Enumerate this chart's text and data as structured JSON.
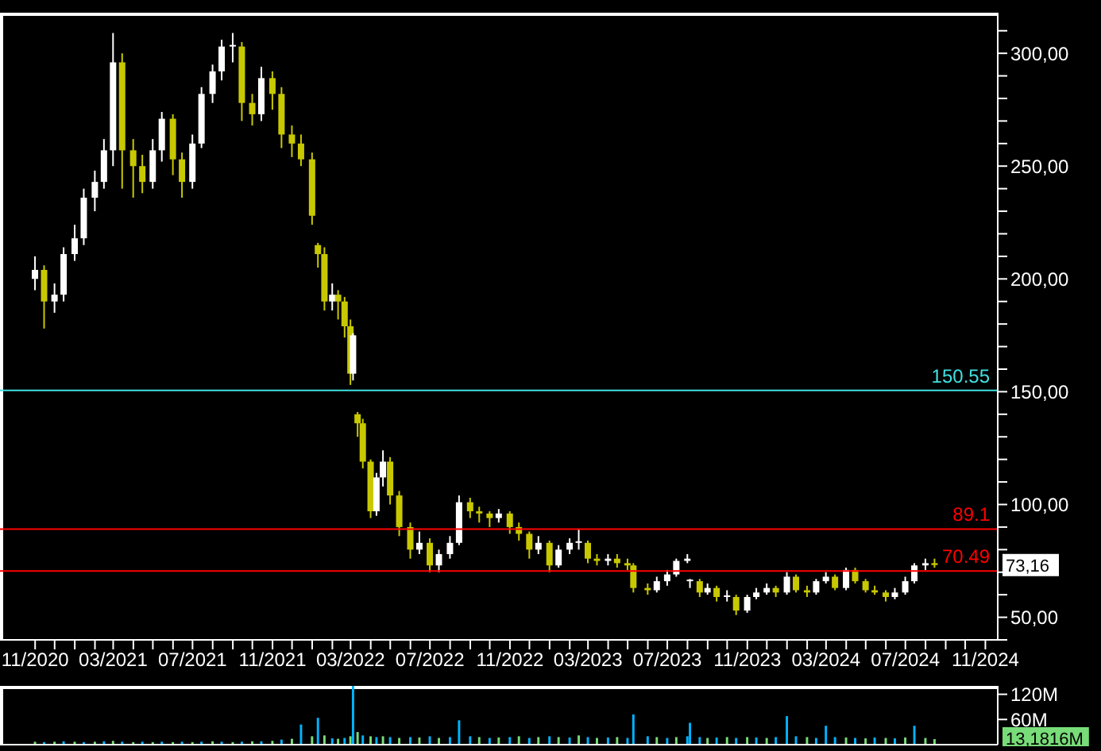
{
  "chart_data": [
    {
      "type": "candlestick",
      "x": [
        "2020-11-01",
        "2020-11-15",
        "2020-12-01",
        "2020-12-15",
        "2021-01-01",
        "2021-01-15",
        "2021-02-01",
        "2021-02-15",
        "2021-03-01",
        "2021-03-15",
        "2021-04-01",
        "2021-04-15",
        "2021-05-01",
        "2021-05-15",
        "2021-06-01",
        "2021-06-15",
        "2021-07-01",
        "2021-07-15",
        "2021-08-01",
        "2021-08-15",
        "2021-09-01",
        "2021-09-15",
        "2021-10-01",
        "2021-10-15",
        "2021-11-01",
        "2021-11-15",
        "2021-12-01",
        "2021-12-15",
        "2022-01-01",
        "2022-01-10",
        "2022-01-20",
        "2022-02-01",
        "2022-02-10",
        "2022-02-20",
        "2022-03-01",
        "2022-03-05",
        "2022-03-12",
        "2022-03-20",
        "2022-04-01",
        "2022-04-10",
        "2022-04-20",
        "2022-05-01",
        "2022-05-15",
        "2022-06-01",
        "2022-06-15",
        "2022-07-01",
        "2022-07-15",
        "2022-08-01",
        "2022-08-15",
        "2022-09-01",
        "2022-09-15",
        "2022-10-01",
        "2022-10-15",
        "2022-11-01",
        "2022-11-15",
        "2022-12-01",
        "2022-12-15",
        "2023-01-01",
        "2023-01-15",
        "2023-02-01",
        "2023-02-15",
        "2023-03-01",
        "2023-03-15",
        "2023-04-01",
        "2023-04-15",
        "2023-05-01",
        "2023-05-10",
        "2023-06-01",
        "2023-06-15",
        "2023-07-01",
        "2023-07-15",
        "2023-08-01",
        "2023-08-05",
        "2023-08-20",
        "2023-09-01",
        "2023-09-15",
        "2023-10-01",
        "2023-10-15",
        "2023-11-01",
        "2023-11-15",
        "2023-12-01",
        "2023-12-15",
        "2024-01-01",
        "2024-01-15",
        "2024-02-01",
        "2024-02-15",
        "2024-03-01",
        "2024-03-15",
        "2024-04-01",
        "2024-04-15",
        "2024-05-01",
        "2024-05-15",
        "2024-06-01",
        "2024-06-15",
        "2024-07-01",
        "2024-07-15",
        "2024-08-01",
        "2024-08-15"
      ],
      "ohlc": [
        [
          200,
          210,
          195,
          204
        ],
        [
          204,
          206,
          178,
          190
        ],
        [
          190,
          198,
          185,
          193
        ],
        [
          193,
          214,
          190,
          211
        ],
        [
          211,
          224,
          208,
          218
        ],
        [
          218,
          240,
          215,
          236
        ],
        [
          236,
          248,
          230,
          243
        ],
        [
          243,
          262,
          240,
          257
        ],
        [
          257,
          309,
          250,
          296
        ],
        [
          296,
          300,
          240,
          257
        ],
        [
          257,
          262,
          236,
          250
        ],
        [
          250,
          255,
          238,
          243
        ],
        [
          243,
          262,
          240,
          257
        ],
        [
          257,
          274,
          252,
          271
        ],
        [
          271,
          273,
          246,
          253
        ],
        [
          253,
          256,
          236,
          243
        ],
        [
          243,
          264,
          240,
          260
        ],
        [
          260,
          285,
          258,
          282
        ],
        [
          282,
          295,
          278,
          292
        ],
        [
          292,
          306,
          288,
          303
        ],
        [
          303,
          309,
          296,
          303
        ],
        [
          303,
          305,
          270,
          278
        ],
        [
          278,
          282,
          268,
          273
        ],
        [
          273,
          294,
          270,
          289
        ],
        [
          289,
          292,
          275,
          282
        ],
        [
          282,
          285,
          258,
          264
        ],
        [
          264,
          268,
          254,
          260
        ],
        [
          260,
          264,
          250,
          253
        ],
        [
          253,
          256,
          224,
          228
        ],
        [
          215,
          216,
          205,
          211
        ],
        [
          211,
          214,
          186,
          190
        ],
        [
          190,
          198,
          186,
          193
        ],
        [
          193,
          195,
          182,
          190
        ],
        [
          190,
          192,
          174,
          179
        ],
        [
          179,
          182,
          153,
          158
        ],
        [
          158,
          176,
          155,
          175
        ],
        [
          140,
          141,
          130,
          136
        ],
        [
          136,
          138,
          116,
          119
        ],
        [
          119,
          120,
          94,
          97
        ],
        [
          97,
          114,
          95,
          112
        ],
        [
          112,
          124,
          108,
          119
        ],
        [
          119,
          121,
          100,
          104
        ],
        [
          104,
          106,
          86,
          90
        ],
        [
          90,
          92,
          76,
          80
        ],
        [
          80,
          88,
          78,
          83
        ],
        [
          83,
          85,
          70,
          73
        ],
        [
          73,
          80,
          70,
          78
        ],
        [
          78,
          86,
          76,
          83
        ],
        [
          83,
          104,
          82,
          101
        ],
        [
          101,
          103,
          94,
          97
        ],
        [
          97,
          99,
          92,
          96
        ],
        [
          96,
          97,
          90,
          94
        ],
        [
          94,
          98,
          92,
          96
        ],
        [
          96,
          97,
          87,
          90
        ],
        [
          90,
          92,
          84,
          87
        ],
        [
          87,
          88,
          76,
          80
        ],
        [
          80,
          86,
          78,
          83
        ],
        [
          83,
          84,
          70,
          73
        ],
        [
          73,
          82,
          72,
          80
        ],
        [
          80,
          85,
          78,
          83
        ],
        [
          83,
          89,
          80,
          83
        ],
        [
          83,
          84,
          74,
          76
        ],
        [
          76,
          78,
          73,
          75
        ],
        [
          75,
          78,
          73,
          76
        ],
        [
          76,
          78,
          72,
          74
        ],
        [
          74,
          76,
          71,
          73
        ],
        [
          73,
          74,
          61,
          63
        ],
        [
          63,
          65,
          60,
          62
        ],
        [
          62,
          68,
          61,
          66
        ],
        [
          66,
          71,
          64,
          69
        ],
        [
          69,
          76,
          68,
          75
        ],
        [
          75,
          78,
          74,
          76
        ],
        [
          66,
          67,
          63,
          66
        ],
        [
          66,
          67,
          59,
          61
        ],
        [
          61,
          65,
          60,
          63
        ],
        [
          63,
          64,
          57,
          59
        ],
        [
          59,
          62,
          57,
          59
        ],
        [
          59,
          60,
          51,
          53
        ],
        [
          53,
          60,
          52,
          59
        ],
        [
          59,
          63,
          58,
          61
        ],
        [
          61,
          65,
          60,
          63
        ],
        [
          63,
          64,
          59,
          61
        ],
        [
          61,
          70,
          60,
          68
        ],
        [
          68,
          69,
          61,
          62
        ],
        [
          62,
          64,
          59,
          61
        ],
        [
          61,
          67,
          60,
          66
        ],
        [
          66,
          70,
          65,
          68
        ],
        [
          68,
          69,
          62,
          63
        ],
        [
          63,
          72,
          62,
          71
        ],
        [
          71,
          72,
          65,
          66
        ],
        [
          66,
          67,
          61,
          62
        ],
        [
          62,
          64,
          60,
          61
        ],
        [
          61,
          62,
          57,
          59
        ],
        [
          59,
          63,
          58,
          61
        ],
        [
          61,
          68,
          60,
          66
        ],
        [
          66,
          74,
          65,
          73
        ],
        [
          73,
          76,
          71,
          74
        ],
        [
          74,
          76,
          72,
          73.16
        ]
      ],
      "colors": [
        "#ffffff",
        "#c8c800",
        "#ffffff",
        "#ffffff",
        "#ffffff",
        "#ffffff",
        "#ffffff",
        "#ffffff",
        "#ffffff",
        "#c8c800",
        "#c8c800",
        "#c8c800",
        "#ffffff",
        "#ffffff",
        "#c8c800",
        "#c8c800",
        "#ffffff",
        "#ffffff",
        "#ffffff",
        "#ffffff",
        "#ffffff",
        "#c8c800",
        "#c8c800",
        "#ffffff",
        "#c8c800",
        "#c8c800",
        "#c8c800",
        "#c8c800",
        "#c8c800",
        "#c8c800",
        "#c8c800",
        "#ffffff",
        "#c8c800",
        "#c8c800",
        "#c8c800",
        "#ffffff",
        "#c8c800",
        "#c8c800",
        "#c8c800",
        "#ffffff",
        "#ffffff",
        "#c8c800",
        "#c8c800",
        "#c8c800",
        "#ffffff",
        "#c8c800",
        "#ffffff",
        "#ffffff",
        "#ffffff",
        "#c8c800",
        "#c8c800",
        "#c8c800",
        "#ffffff",
        "#c8c800",
        "#c8c800",
        "#c8c800",
        "#ffffff",
        "#c8c800",
        "#ffffff",
        "#ffffff",
        "#ffffff",
        "#c8c800",
        "#c8c800",
        "#ffffff",
        "#c8c800",
        "#c8c800",
        "#c8c800",
        "#c8c800",
        "#ffffff",
        "#ffffff",
        "#ffffff",
        "#ffffff",
        "#ffffff",
        "#c8c800",
        "#ffffff",
        "#c8c800",
        "#ffffff",
        "#c8c800",
        "#ffffff",
        "#ffffff",
        "#ffffff",
        "#c8c800",
        "#ffffff",
        "#c8c800",
        "#c8c800",
        "#ffffff",
        "#ffffff",
        "#c8c800",
        "#ffffff",
        "#c8c800",
        "#c8c800",
        "#c8c800",
        "#c8c800",
        "#ffffff",
        "#ffffff",
        "#ffffff",
        "#ffffff",
        "#c8c800"
      ],
      "xlim": [
        "2020-09-08",
        "2024-11-20"
      ],
      "xticks": [
        {
          "value": "2020-11",
          "label": "11/2020"
        },
        {
          "value": "2020-12",
          "label": null
        },
        {
          "value": "2021-01",
          "label": null
        },
        {
          "value": "2021-02",
          "label": null
        },
        {
          "value": "2021-03",
          "label": "03/2021"
        },
        {
          "value": "2021-04",
          "label": null
        },
        {
          "value": "2021-05",
          "label": null
        },
        {
          "value": "2021-06",
          "label": null
        },
        {
          "value": "2021-07",
          "label": "07/2021"
        },
        {
          "value": "2021-08",
          "label": null
        },
        {
          "value": "2021-09",
          "label": null
        },
        {
          "value": "2021-10",
          "label": null
        },
        {
          "value": "2021-11",
          "label": "11/2021"
        },
        {
          "value": "2021-12",
          "label": null
        },
        {
          "value": "2022-01",
          "label": null
        },
        {
          "value": "2022-02",
          "label": null
        },
        {
          "value": "2022-03",
          "label": "03/2022"
        },
        {
          "value": "2022-04",
          "label": null
        },
        {
          "value": "2022-05",
          "label": null
        },
        {
          "value": "2022-06",
          "label": null
        },
        {
          "value": "2022-07",
          "label": "07/2022"
        },
        {
          "value": "2022-08",
          "label": null
        },
        {
          "value": "2022-09",
          "label": null
        },
        {
          "value": "2022-10",
          "label": null
        },
        {
          "value": "2022-11",
          "label": "11/2022"
        },
        {
          "value": "2022-12",
          "label": null
        },
        {
          "value": "2023-01",
          "label": null
        },
        {
          "value": "2023-02",
          "label": null
        },
        {
          "value": "2023-03",
          "label": "03/2023"
        },
        {
          "value": "2023-04",
          "label": null
        },
        {
          "value": "2023-05",
          "label": null
        },
        {
          "value": "2023-06",
          "label": null
        },
        {
          "value": "2023-07",
          "label": "07/2023"
        },
        {
          "value": "2023-08",
          "label": null
        },
        {
          "value": "2023-09",
          "label": null
        },
        {
          "value": "2023-10",
          "label": null
        },
        {
          "value": "2023-11",
          "label": "11/2023"
        },
        {
          "value": "2023-12",
          "label": null
        },
        {
          "value": "2024-01",
          "label": null
        },
        {
          "value": "2024-02",
          "label": null
        },
        {
          "value": "2024-03",
          "label": "03/2024"
        },
        {
          "value": "2024-04",
          "label": null
        },
        {
          "value": "2024-05",
          "label": null
        },
        {
          "value": "2024-06",
          "label": null
        },
        {
          "value": "2024-07",
          "label": "07/2024"
        },
        {
          "value": "2024-08",
          "label": null
        },
        {
          "value": "2024-09",
          "label": null
        },
        {
          "value": "2024-10",
          "label": null
        },
        {
          "value": "2024-11",
          "label": "11/2024"
        }
      ],
      "ylim": [
        40,
        318
      ],
      "yticks": [
        {
          "value": 40,
          "label": null
        },
        {
          "value": 50,
          "label": "50,00"
        },
        {
          "value": 60,
          "label": null
        },
        {
          "value": 70,
          "label": null
        },
        {
          "value": 80,
          "label": null
        },
        {
          "value": 90,
          "label": null
        },
        {
          "value": 100,
          "label": "100,00"
        },
        {
          "value": 110,
          "label": null
        },
        {
          "value": 120,
          "label": null
        },
        {
          "value": 130,
          "label": null
        },
        {
          "value": 140,
          "label": null
        },
        {
          "value": 150,
          "label": "150,00"
        },
        {
          "value": 160,
          "label": null
        },
        {
          "value": 170,
          "label": null
        },
        {
          "value": 180,
          "label": null
        },
        {
          "value": 190,
          "label": null
        },
        {
          "value": 200,
          "label": "200,00"
        },
        {
          "value": 210,
          "label": null
        },
        {
          "value": 220,
          "label": null
        },
        {
          "value": 230,
          "label": null
        },
        {
          "value": 240,
          "label": null
        },
        {
          "value": 250,
          "label": "250,00"
        },
        {
          "value": 260,
          "label": null
        },
        {
          "value": 270,
          "label": null
        },
        {
          "value": 280,
          "label": null
        },
        {
          "value": 290,
          "label": null
        },
        {
          "value": 300,
          "label": "300,00"
        },
        {
          "value": 310,
          "label": null
        }
      ],
      "ref_lines": [
        {
          "axis": "y",
          "value": 150.55,
          "label": "150.55",
          "color": "#40e0e0"
        },
        {
          "axis": "y",
          "value": 89.1,
          "label": "89.1",
          "color": "#ff0000"
        },
        {
          "axis": "y",
          "value": 70.49,
          "label": "70.49",
          "color": "#ff0000"
        }
      ],
      "annotations": [
        "73,16"
      ]
    },
    {
      "type": "bar",
      "x": [
        "2020-11-01",
        "2020-11-15",
        "2020-12-01",
        "2020-12-15",
        "2021-01-01",
        "2021-01-15",
        "2021-02-01",
        "2021-02-15",
        "2021-03-01",
        "2021-03-15",
        "2021-04-01",
        "2021-04-15",
        "2021-05-01",
        "2021-05-15",
        "2021-06-01",
        "2021-06-15",
        "2021-07-01",
        "2021-07-15",
        "2021-08-01",
        "2021-08-15",
        "2021-09-01",
        "2021-09-15",
        "2021-10-01",
        "2021-10-15",
        "2021-11-01",
        "2021-11-15",
        "2021-12-01",
        "2021-12-15",
        "2022-01-01",
        "2022-01-10",
        "2022-01-20",
        "2022-02-01",
        "2022-02-10",
        "2022-02-20",
        "2022-03-01",
        "2022-03-05",
        "2022-03-12",
        "2022-03-20",
        "2022-04-01",
        "2022-04-10",
        "2022-04-20",
        "2022-05-01",
        "2022-05-15",
        "2022-06-01",
        "2022-06-15",
        "2022-07-01",
        "2022-07-15",
        "2022-08-01",
        "2022-08-15",
        "2022-09-01",
        "2022-09-15",
        "2022-10-01",
        "2022-10-15",
        "2022-11-01",
        "2022-11-15",
        "2022-12-01",
        "2022-12-15",
        "2023-01-01",
        "2023-01-15",
        "2023-02-01",
        "2023-02-15",
        "2023-03-01",
        "2023-03-15",
        "2023-04-01",
        "2023-04-15",
        "2023-05-01",
        "2023-05-10",
        "2023-06-01",
        "2023-06-15",
        "2023-07-01",
        "2023-07-15",
        "2023-08-01",
        "2023-08-05",
        "2023-08-20",
        "2023-09-01",
        "2023-09-15",
        "2023-10-01",
        "2023-10-15",
        "2023-11-01",
        "2023-11-15",
        "2023-12-01",
        "2023-12-15",
        "2024-01-01",
        "2024-01-15",
        "2024-02-01",
        "2024-02-15",
        "2024-03-01",
        "2024-03-15",
        "2024-04-01",
        "2024-04-15",
        "2024-05-01",
        "2024-05-15",
        "2024-06-01",
        "2024-06-15",
        "2024-07-01",
        "2024-07-15",
        "2024-08-01",
        "2024-08-15"
      ],
      "values": [
        7,
        6,
        7,
        8,
        7,
        6,
        7,
        8,
        9,
        7,
        6,
        7,
        6,
        7,
        6,
        7,
        6,
        7,
        8,
        7,
        6,
        7,
        8,
        8,
        9,
        12,
        14,
        48,
        20,
        64,
        22,
        15,
        14,
        16,
        20,
        140,
        30,
        22,
        20,
        18,
        20,
        18,
        16,
        18,
        17,
        20,
        16,
        18,
        58,
        20,
        18,
        16,
        17,
        18,
        20,
        16,
        18,
        20,
        18,
        17,
        22,
        18,
        16,
        17,
        18,
        16,
        72,
        20,
        18,
        16,
        18,
        20,
        52,
        18,
        16,
        17,
        18,
        16,
        18,
        17,
        16,
        18,
        68,
        20,
        18,
        16,
        45,
        18,
        17,
        16,
        15,
        17,
        16,
        15,
        17,
        45,
        16,
        13.1816
      ],
      "colors": [
        "#78dc78",
        "#00b4ff",
        "#78dc78",
        "#00b4ff",
        "#78dc78",
        "#00b4ff",
        "#78dc78",
        "#00b4ff",
        "#78dc78",
        "#00b4ff",
        "#78dc78",
        "#00b4ff",
        "#78dc78",
        "#00b4ff",
        "#78dc78",
        "#00b4ff",
        "#78dc78",
        "#00b4ff",
        "#78dc78",
        "#00b4ff",
        "#78dc78",
        "#00b4ff",
        "#78dc78",
        "#00b4ff",
        "#78dc78",
        "#00b4ff",
        "#78dc78",
        "#00b4ff",
        "#78dc78",
        "#00b4ff",
        "#78dc78",
        "#00b4ff",
        "#78dc78",
        "#00b4ff",
        "#78dc78",
        "#00b4ff",
        "#78dc78",
        "#00b4ff",
        "#78dc78",
        "#00b4ff",
        "#78dc78",
        "#00b4ff",
        "#78dc78",
        "#00b4ff",
        "#78dc78",
        "#00b4ff",
        "#78dc78",
        "#00b4ff",
        "#00b4ff",
        "#00b4ff",
        "#78dc78",
        "#00b4ff",
        "#78dc78",
        "#00b4ff",
        "#78dc78",
        "#00b4ff",
        "#78dc78",
        "#00b4ff",
        "#78dc78",
        "#00b4ff",
        "#78dc78",
        "#00b4ff",
        "#78dc78",
        "#00b4ff",
        "#78dc78",
        "#00b4ff",
        "#00b4ff",
        "#00b4ff",
        "#78dc78",
        "#00b4ff",
        "#78dc78",
        "#00b4ff",
        "#00b4ff",
        "#00b4ff",
        "#78dc78",
        "#00b4ff",
        "#78dc78",
        "#00b4ff",
        "#78dc78",
        "#00b4ff",
        "#78dc78",
        "#00b4ff",
        "#00b4ff",
        "#00b4ff",
        "#78dc78",
        "#00b4ff",
        "#00b4ff",
        "#00b4ff",
        "#78dc78",
        "#00b4ff",
        "#78dc78",
        "#00b4ff",
        "#78dc78",
        "#00b4ff",
        "#78dc78",
        "#00b4ff",
        "#78dc78",
        "#78dc78"
      ],
      "xlim": [
        "2020-09-08",
        "2024-11-20"
      ],
      "ylim": [
        0,
        140
      ],
      "yticks": [
        {
          "value": 60,
          "label": "60M"
        },
        {
          "value": 120,
          "label": "120M"
        }
      ],
      "tick_labels": "y",
      "annotations": [
        "13,1816M"
      ]
    }
  ]
}
